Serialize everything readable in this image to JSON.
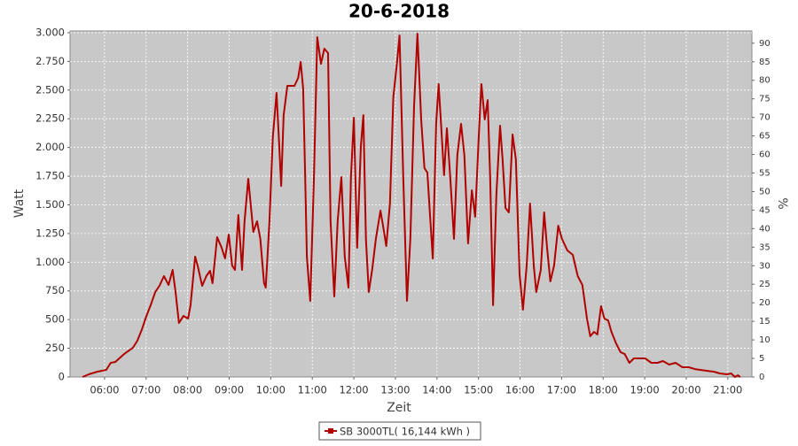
{
  "chart_data": {
    "type": "line",
    "title": "20-6-2018",
    "x_label": "Zeit",
    "y_label": "Watt",
    "y2_label": "%",
    "xlim": [
      5.17,
      21.58
    ],
    "xticks": [
      {
        "value": 6,
        "label": "06:00"
      },
      {
        "value": 7,
        "label": "07:00"
      },
      {
        "value": 8,
        "label": "08:00"
      },
      {
        "value": 9,
        "label": "09:00"
      },
      {
        "value": 10,
        "label": "10:00"
      },
      {
        "value": 11,
        "label": "11:00"
      },
      {
        "value": 12,
        "label": "12:00"
      },
      {
        "value": 13,
        "label": "13:00"
      },
      {
        "value": 14,
        "label": "14:00"
      },
      {
        "value": 15,
        "label": "15:00"
      },
      {
        "value": 16,
        "label": "16:00"
      },
      {
        "value": 17,
        "label": "17:00"
      },
      {
        "value": 18,
        "label": "18:00"
      },
      {
        "value": 19,
        "label": "19:00"
      },
      {
        "value": 20,
        "label": "20:00"
      },
      {
        "value": 21,
        "label": "21:00"
      }
    ],
    "ylim": [
      0,
      3015
    ],
    "yticks": [
      0,
      250,
      500,
      750,
      {
        "value": 1000,
        "label": "1.000"
      },
      {
        "value": 1250,
        "label": "1.250"
      },
      {
        "value": 1500,
        "label": "1.500"
      },
      {
        "value": 1750,
        "label": "1.750"
      },
      {
        "value": 2000,
        "label": "2.000"
      },
      {
        "value": 2250,
        "label": "2.250"
      },
      {
        "value": 2500,
        "label": "2.500"
      },
      {
        "value": 2750,
        "label": "2.750"
      },
      {
        "value": 3000,
        "label": "3.000"
      }
    ],
    "y2lim": [
      0,
      93.3
    ],
    "y2ticks": [
      0,
      5,
      10,
      15,
      20,
      25,
      30,
      35,
      40,
      45,
      50,
      55,
      60,
      65,
      70,
      75,
      80,
      85,
      90
    ],
    "grid": true,
    "legend": "bottom",
    "x": [
      5.47,
      5.62,
      5.83,
      6.04,
      6.15,
      6.26,
      6.47,
      6.68,
      6.79,
      6.9,
      7.0,
      7.11,
      7.22,
      7.32,
      7.43,
      7.54,
      7.64,
      7.71,
      7.79,
      7.9,
      8.01,
      8.07,
      8.18,
      8.24,
      8.35,
      8.45,
      8.54,
      8.6,
      8.71,
      8.82,
      8.9,
      8.99,
      9.07,
      9.14,
      9.22,
      9.31,
      9.37,
      9.46,
      9.58,
      9.67,
      9.75,
      9.84,
      9.88,
      9.97,
      10.05,
      10.14,
      10.2,
      10.25,
      10.31,
      10.4,
      10.57,
      10.66,
      10.72,
      10.78,
      10.83,
      10.87,
      10.95,
      11.04,
      11.12,
      11.21,
      11.29,
      11.38,
      11.44,
      11.53,
      11.61,
      11.7,
      11.78,
      11.87,
      11.93,
      12.0,
      12.08,
      12.17,
      12.23,
      12.29,
      12.36,
      12.44,
      12.53,
      12.64,
      12.72,
      12.78,
      12.87,
      12.95,
      13.04,
      13.1,
      13.19,
      13.28,
      13.36,
      13.45,
      13.53,
      13.62,
      13.7,
      13.77,
      13.83,
      13.9,
      13.98,
      14.04,
      14.13,
      14.17,
      14.24,
      14.32,
      14.41,
      14.49,
      14.58,
      14.66,
      14.75,
      14.84,
      14.92,
      15.0,
      15.07,
      15.15,
      15.22,
      15.28,
      15.35,
      15.43,
      15.52,
      15.58,
      15.65,
      15.73,
      15.82,
      15.9,
      15.99,
      16.07,
      16.16,
      16.24,
      16.33,
      16.39,
      16.5,
      16.58,
      16.65,
      16.73,
      16.82,
      16.92,
      17.01,
      17.14,
      17.27,
      17.39,
      17.5,
      17.61,
      17.69,
      17.78,
      17.86,
      17.95,
      18.03,
      18.12,
      18.2,
      18.31,
      18.42,
      18.52,
      18.63,
      18.74,
      18.89,
      19.01,
      19.16,
      19.31,
      19.44,
      19.59,
      19.74,
      19.91,
      20.06,
      20.21,
      20.34,
      20.49,
      20.66,
      20.81,
      20.98,
      21.08,
      21.17,
      21.24,
      21.3
    ],
    "series": [
      {
        "name": "SB 3000TL( 16,144 kWh )",
        "color": "#b00000",
        "values": [
          0,
          23,
          46,
          62,
          123,
          131,
          200,
          254,
          316,
          416,
          524,
          625,
          740,
          794,
          879,
          802,
          933,
          740,
          470,
          532,
          509,
          625,
          1049,
          971,
          794,
          879,
          925,
          817,
          1218,
          1126,
          1033,
          1241,
          971,
          933,
          1411,
          933,
          1357,
          1727,
          1264,
          1357,
          1203,
          817,
          779,
          1357,
          2089,
          2475,
          2050,
          1665,
          2282,
          2537,
          2537,
          2606,
          2745,
          2514,
          1742,
          1049,
          663,
          1742,
          2961,
          2729,
          2861,
          2822,
          1357,
          702,
          1357,
          1742,
          1049,
          779,
          1742,
          2259,
          1126,
          2012,
          2282,
          1203,
          740,
          933,
          1203,
          1450,
          1280,
          1141,
          1511,
          2437,
          2745,
          2976,
          1742,
          663,
          1203,
          2359,
          2992,
          2244,
          1820,
          1781,
          1434,
          1033,
          2205,
          2552,
          2012,
          1758,
          2167,
          1742,
          1203,
          1935,
          2205,
          1935,
          1164,
          1627,
          1396,
          2051,
          2552,
          2244,
          2413,
          1742,
          625,
          1588,
          2190,
          1897,
          1473,
          1434,
          2113,
          1897,
          894,
          586,
          971,
          1511,
          971,
          740,
          933,
          1434,
          1126,
          833,
          971,
          1318,
          1203,
          1103,
          1064,
          879,
          802,
          509,
          355,
          393,
          370,
          617,
          509,
          493,
          393,
          293,
          216,
          200,
          123,
          162,
          162,
          162,
          123,
          123,
          139,
          108,
          123,
          85,
          85,
          69,
          62,
          54,
          46,
          31,
          23,
          31,
          0,
          15,
          0
        ]
      }
    ]
  }
}
